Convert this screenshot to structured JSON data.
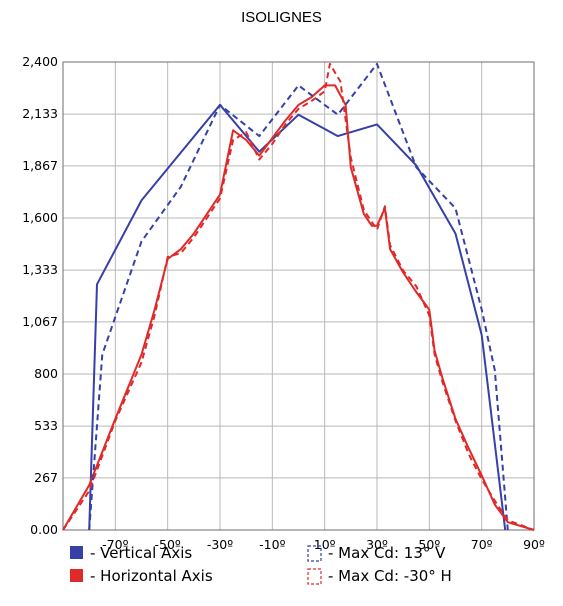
{
  "chart_data": {
    "type": "line",
    "title": "ISOLIGNES",
    "xlabel": "",
    "ylabel": "",
    "xlim": [
      -90,
      90
    ],
    "ylim": [
      0,
      2400
    ],
    "grid": true,
    "x_ticks": [
      -70,
      -50,
      -30,
      -10,
      10,
      30,
      50,
      70,
      90
    ],
    "x_tick_labels": [
      "-70º",
      "-50º",
      "-30º",
      "-10º",
      "10º",
      "30º",
      "50º",
      "70º",
      "90º"
    ],
    "y_ticks": [
      0,
      267,
      533,
      800,
      1067,
      1333,
      1600,
      1867,
      2133,
      2400
    ],
    "y_tick_labels": [
      "0.00",
      "267",
      "533",
      "800",
      "1,067",
      "1,333",
      "1,600",
      "1,867",
      "2,133",
      "2,400"
    ],
    "legend_position": "bottom",
    "series": [
      {
        "name": "- Vertical Axis",
        "color": "#3640a8",
        "style": "solid",
        "points": [
          [
            -80,
            0
          ],
          [
            -77,
            1260
          ],
          [
            -60,
            1690
          ],
          [
            -30,
            2180
          ],
          [
            -15,
            1940
          ],
          [
            0,
            2130
          ],
          [
            15,
            2020
          ],
          [
            30,
            2080
          ],
          [
            45,
            1870
          ],
          [
            60,
            1520
          ],
          [
            70,
            1000
          ],
          [
            79,
            0
          ]
        ]
      },
      {
        "name": "- Horizontal Axis",
        "color": "#e02a2a",
        "style": "solid",
        "points": [
          [
            -90,
            0
          ],
          [
            -80,
            230
          ],
          [
            -70,
            570
          ],
          [
            -60,
            900
          ],
          [
            -55,
            1130
          ],
          [
            -50,
            1390
          ],
          [
            -45,
            1440
          ],
          [
            -40,
            1520
          ],
          [
            -35,
            1620
          ],
          [
            -30,
            1720
          ],
          [
            -25,
            2050
          ],
          [
            -20,
            2000
          ],
          [
            -15,
            1920
          ],
          [
            -10,
            2010
          ],
          [
            -5,
            2100
          ],
          [
            0,
            2180
          ],
          [
            5,
            2220
          ],
          [
            10,
            2280
          ],
          [
            14,
            2280
          ],
          [
            18,
            2180
          ],
          [
            20,
            1860
          ],
          [
            25,
            1620
          ],
          [
            28,
            1560
          ],
          [
            30,
            1560
          ],
          [
            33,
            1650
          ],
          [
            35,
            1440
          ],
          [
            40,
            1320
          ],
          [
            45,
            1220
          ],
          [
            50,
            1130
          ],
          [
            52,
            920
          ],
          [
            55,
            780
          ],
          [
            60,
            570
          ],
          [
            65,
            420
          ],
          [
            70,
            280
          ],
          [
            75,
            130
          ],
          [
            80,
            40
          ],
          [
            90,
            0
          ]
        ]
      },
      {
        "name": "- Max Cd: 13° V",
        "color": "#3640a8",
        "style": "dashed",
        "points": [
          [
            -80,
            0
          ],
          [
            -75,
            900
          ],
          [
            -60,
            1480
          ],
          [
            -45,
            1760
          ],
          [
            -30,
            2180
          ],
          [
            -15,
            2020
          ],
          [
            0,
            2280
          ],
          [
            15,
            2130
          ],
          [
            30,
            2390
          ],
          [
            45,
            1860
          ],
          [
            60,
            1650
          ],
          [
            70,
            1130
          ],
          [
            75,
            820
          ],
          [
            80,
            0
          ]
        ]
      },
      {
        "name": "- Max Cd: -30° H",
        "color": "#e02a2a",
        "style": "dashed",
        "points": [
          [
            -90,
            0
          ],
          [
            -80,
            200
          ],
          [
            -70,
            560
          ],
          [
            -60,
            860
          ],
          [
            -55,
            1100
          ],
          [
            -50,
            1400
          ],
          [
            -45,
            1420
          ],
          [
            -40,
            1500
          ],
          [
            -35,
            1600
          ],
          [
            -30,
            1700
          ],
          [
            -25,
            2000
          ],
          [
            -20,
            2040
          ],
          [
            -15,
            1900
          ],
          [
            -10,
            1980
          ],
          [
            -5,
            2080
          ],
          [
            0,
            2160
          ],
          [
            5,
            2200
          ],
          [
            10,
            2250
          ],
          [
            12,
            2390
          ],
          [
            16,
            2300
          ],
          [
            20,
            1910
          ],
          [
            25,
            1640
          ],
          [
            28,
            1580
          ],
          [
            30,
            1540
          ],
          [
            33,
            1660
          ],
          [
            35,
            1460
          ],
          [
            40,
            1330
          ],
          [
            45,
            1250
          ],
          [
            50,
            1100
          ],
          [
            52,
            900
          ],
          [
            55,
            760
          ],
          [
            60,
            560
          ],
          [
            65,
            390
          ],
          [
            70,
            260
          ],
          [
            75,
            150
          ],
          [
            80,
            50
          ],
          [
            90,
            0
          ]
        ]
      }
    ]
  }
}
